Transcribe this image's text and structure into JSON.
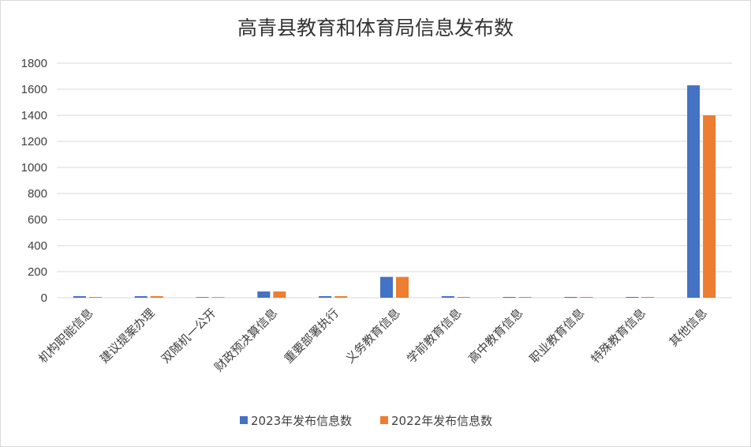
{
  "chart_data": {
    "type": "bar",
    "title": "高青县教育和体育局信息发布数",
    "categories": [
      "机构职能信息",
      "建议提案办理",
      "双随机一公开",
      "财政预决算信息",
      "重要部署执行",
      "义务教育信息",
      "学前教育信息",
      "高中教育信息",
      "职业教育信息",
      "特殊教育信息",
      "其他信息"
    ],
    "series": [
      {
        "name": "2023年发布信息数",
        "color": "#4472c4",
        "values": [
          12,
          12,
          5,
          48,
          12,
          160,
          12,
          6,
          6,
          6,
          1630
        ]
      },
      {
        "name": "2022年发布信息数",
        "color": "#ed7d31",
        "values": [
          6,
          12,
          5,
          48,
          12,
          160,
          6,
          6,
          6,
          6,
          1400
        ]
      }
    ],
    "ylim": [
      0,
      1800
    ],
    "yticks": [
      0,
      200,
      400,
      600,
      800,
      1000,
      1200,
      1400,
      1600,
      1800
    ],
    "grid": true,
    "legend": "bottom"
  }
}
